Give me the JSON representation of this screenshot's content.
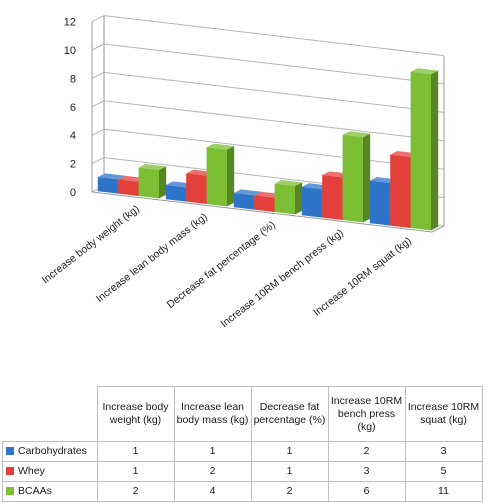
{
  "chart_data": {
    "type": "bar",
    "categories": [
      "Increase body weight (kg)",
      "Increase lean body mass (kg)",
      "Decrease fat percentage (%)",
      "Increase 10RM bench press (kg)",
      "Increase 10RM squat (kg)"
    ],
    "series": [
      {
        "name": "Carbohydrates",
        "color": "#2E75C9",
        "values": [
          1,
          1,
          1,
          2,
          3
        ]
      },
      {
        "name": "Whey",
        "color": "#E3403C",
        "values": [
          1,
          2,
          1,
          3,
          5
        ]
      },
      {
        "name": "BCAAs",
        "color": "#7CBF34",
        "values": [
          2,
          4,
          2,
          6,
          11
        ]
      }
    ],
    "ylim": [
      0,
      12
    ],
    "yticks": [
      "0",
      "2",
      "4",
      "6",
      "8",
      "10",
      "12"
    ],
    "grid": true,
    "legend": "data table below chart",
    "style": "3D clustered column"
  },
  "table": {
    "headers": [
      "Increase body weight (kg)",
      "Increase lean body mass (kg)",
      "Decrease fat percentage (%)",
      "Increase 10RM bench press (kg)",
      "Increase 10RM squat (kg)"
    ],
    "rows": [
      {
        "label": "Carbohydrates",
        "values": [
          "1",
          "1",
          "1",
          "2",
          "3"
        ]
      },
      {
        "label": "Whey",
        "values": [
          "1",
          "2",
          "1",
          "3",
          "5"
        ]
      },
      {
        "label": "BCAAs",
        "values": [
          "2",
          "4",
          "2",
          "6",
          "11"
        ]
      }
    ]
  }
}
